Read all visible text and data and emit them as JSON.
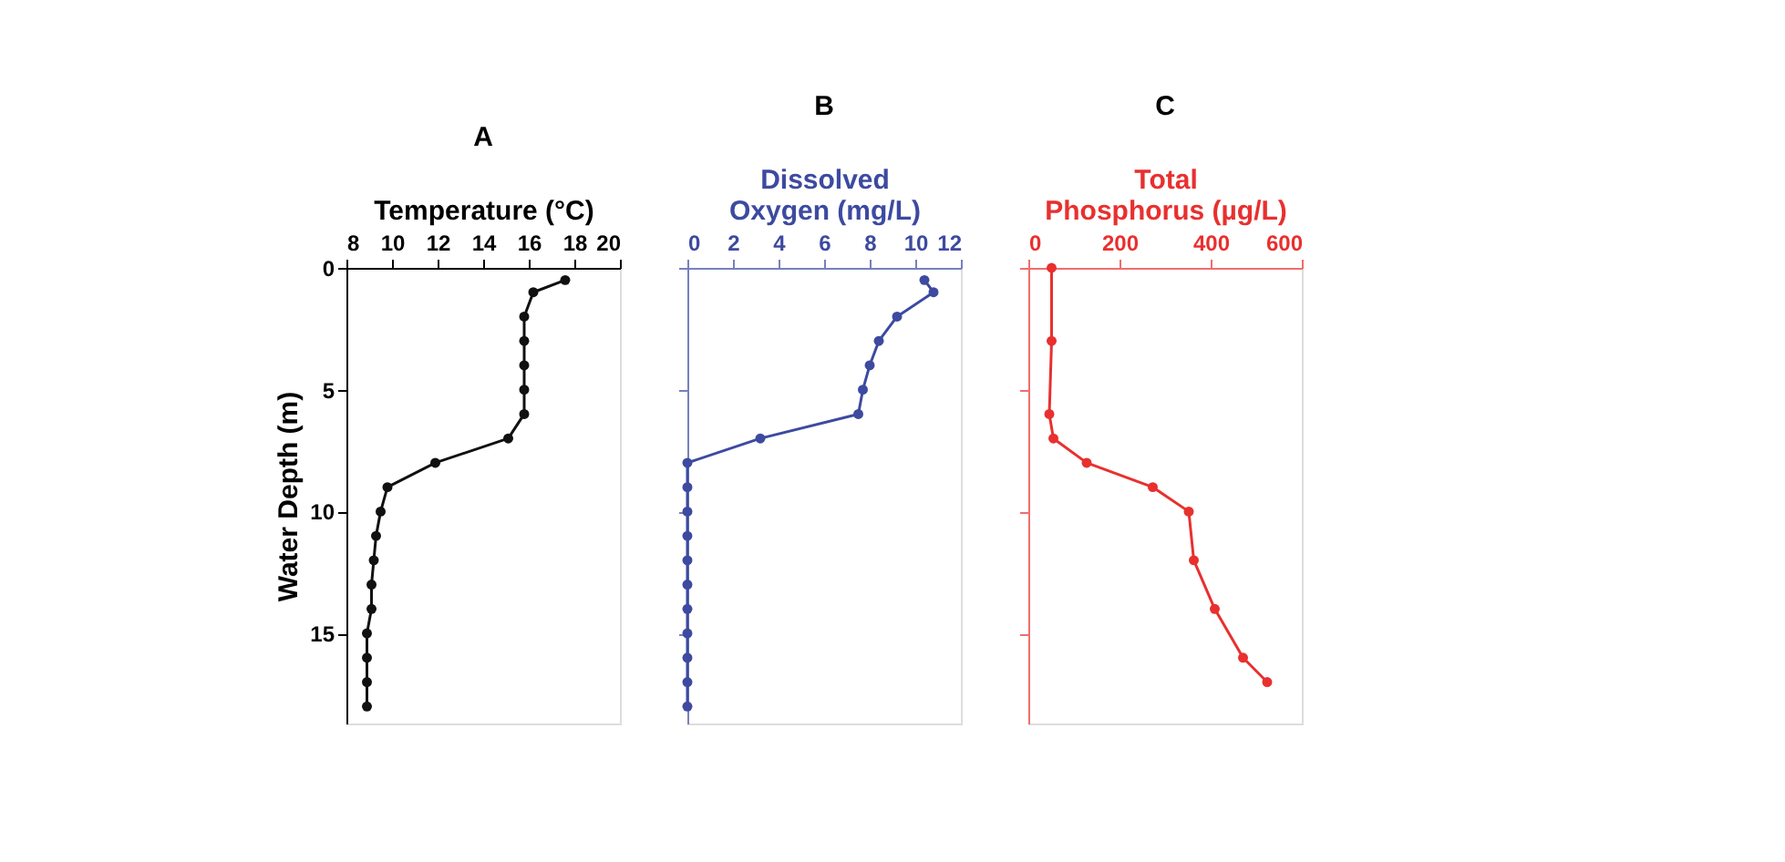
{
  "chart_data": [
    {
      "type": "line",
      "orientation": "horizontal",
      "title": "A",
      "xlabel": "Temperature (°C)",
      "ylabel": "Water Depth (m)",
      "x": [
        0.5,
        1,
        2,
        3,
        4,
        5,
        6,
        7,
        8,
        9,
        10,
        11,
        12,
        13,
        14,
        15,
        16,
        17,
        18
      ],
      "series": [
        {
          "color": "#111111",
          "values": [
            17.6,
            16.2,
            15.8,
            15.8,
            15.8,
            15.8,
            15.8,
            15.1,
            11.9,
            9.8,
            9.5,
            9.3,
            9.2,
            9.1,
            9.1,
            8.9,
            8.9,
            8.9,
            8.9
          ]
        }
      ],
      "xlim": [
        8,
        20
      ],
      "xticks": [
        8,
        10,
        12,
        14,
        16,
        18,
        20
      ],
      "ylim": [
        18.7,
        0
      ],
      "yticks": [
        0,
        5,
        10,
        15
      ],
      "marker": "circle",
      "grid": false
    },
    {
      "type": "line",
      "orientation": "horizontal",
      "title": "B",
      "xlabel": "Dissolved\nOxygen (mg/L)",
      "x": [
        0.5,
        1,
        2,
        3,
        4,
        5,
        6,
        7,
        8,
        9,
        10,
        11,
        12,
        13,
        14,
        15,
        16,
        17,
        18
      ],
      "series": [
        {
          "color": "#3d4aa0",
          "values": [
            10.4,
            10.8,
            9.2,
            8.4,
            8.0,
            7.7,
            7.5,
            3.2,
            0,
            0,
            0,
            0,
            0,
            0,
            0,
            0,
            0,
            0,
            0
          ]
        }
      ],
      "xlim": [
        0,
        12
      ],
      "xticks": [
        0,
        2,
        4,
        6,
        8,
        10,
        12
      ],
      "ylim": [
        18.7,
        0
      ],
      "yticks": [
        {
          "value": 0,
          "label": null
        },
        {
          "value": 5,
          "label": null
        },
        {
          "value": 10,
          "label": null
        },
        {
          "value": 15,
          "label": null
        }
      ],
      "tick_labels": "x",
      "marker": "circle",
      "grid": false
    },
    {
      "type": "line",
      "orientation": "horizontal",
      "title": "C",
      "xlabel": "Total\nPhosphorus (µg/L)",
      "x": [
        0,
        3,
        6,
        7,
        8,
        9,
        10,
        12,
        14,
        16,
        17
      ],
      "series": [
        {
          "color": "#e8302f",
          "values": [
            51,
            51,
            46,
            55,
            128,
            273,
            352,
            363,
            409,
            471,
            524
          ]
        }
      ],
      "xlim": [
        0,
        600
      ],
      "xticks": [
        0,
        200,
        400,
        600
      ],
      "ylim": [
        18.7,
        0
      ],
      "yticks": [
        {
          "value": 0,
          "label": null
        },
        {
          "value": 5,
          "label": null
        },
        {
          "value": 10,
          "label": null
        },
        {
          "value": 15,
          "label": null
        }
      ],
      "tick_labels": "x",
      "marker": "circle",
      "grid": false
    }
  ]
}
